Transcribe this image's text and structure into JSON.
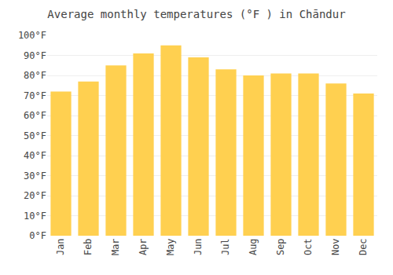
{
  "chart_data": {
    "type": "bar",
    "title": "Average monthly temperatures (°F ) in Chāndur",
    "categories": [
      "Jan",
      "Feb",
      "Mar",
      "Apr",
      "May",
      "Jun",
      "Jul",
      "Aug",
      "Sep",
      "Oct",
      "Nov",
      "Dec"
    ],
    "values": [
      72,
      77,
      85,
      91,
      95,
      89,
      83,
      80,
      81,
      81,
      76,
      71
    ],
    "color": "#FFD050",
    "ylim": [
      0,
      100
    ],
    "yticks": [
      {
        "value": 0,
        "label": "0°F"
      },
      {
        "value": 10,
        "label": "10°F"
      },
      {
        "value": 20,
        "label": "20°F"
      },
      {
        "value": 30,
        "label": "30°F"
      },
      {
        "value": 40,
        "label": "40°F"
      },
      {
        "value": 50,
        "label": "50°F"
      },
      {
        "value": 60,
        "label": "60°F"
      },
      {
        "value": 70,
        "label": "70°F"
      },
      {
        "value": 80,
        "label": "80°F"
      },
      {
        "value": 90,
        "label": "90°F"
      },
      {
        "value": 100,
        "label": "100°F"
      }
    ],
    "grid": true
  }
}
